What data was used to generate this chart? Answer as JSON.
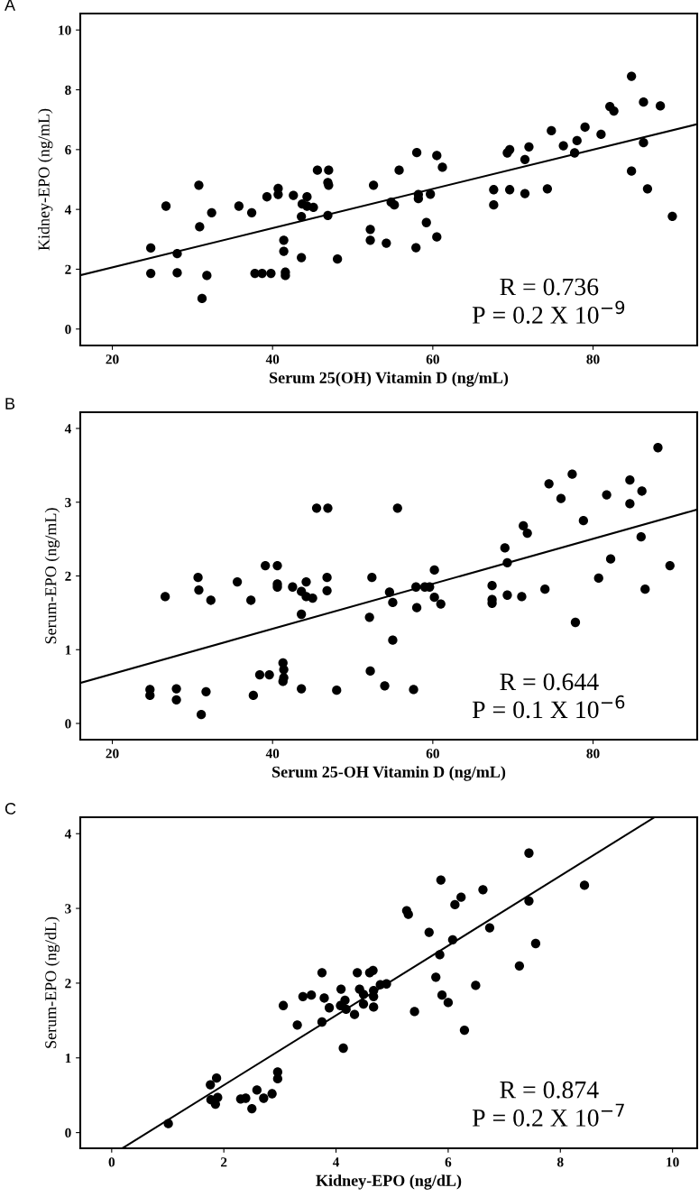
{
  "chart_data": [
    {
      "type": "scatter",
      "title": "A",
      "xlabel": "Serum 25(OH) Vitamin D (ng/mL)",
      "ylabel": "Kidney-EPO (ng/mL)",
      "xlim": [
        16,
        93
      ],
      "ylim": [
        -0.55,
        10.55
      ],
      "xticks": [
        20,
        40,
        60,
        80
      ],
      "yticks": [
        0,
        2,
        4,
        6,
        8,
        10
      ],
      "grid": false,
      "annotations": [
        "R = 0.736",
        "P = 0.2 X 10$^{−9}$"
      ],
      "series": [
        {
          "marker": "circle",
          "color": "#000000",
          "x": [
            24.8,
            24.8,
            26.7,
            28.1,
            28.1,
            30.8,
            30.9,
            31.2,
            31.8,
            32.4,
            35.8,
            37.4,
            37.8,
            38.7,
            39.3,
            39.8,
            40.7,
            40.7,
            41.4,
            41.4,
            41.6,
            41.6,
            42.6,
            43.6,
            43.6,
            43.7,
            44.3,
            44.3,
            45.1,
            45.6,
            47.0,
            46.9,
            47.0,
            46.9,
            48.1,
            52.2,
            52.2,
            52.6,
            54.2,
            54.8,
            55.2,
            55.8,
            57.9,
            58.0,
            58.2,
            58.2,
            59.2,
            59.7,
            60.5,
            60.5,
            61.2,
            67.6,
            67.6,
            69.3,
            69.6,
            69.6,
            71.5,
            71.5,
            72.0,
            74.3,
            74.8,
            76.3,
            77.7,
            78.0,
            79.0,
            81.0,
            82.1,
            82.6,
            84.8,
            84.8,
            86.3,
            86.3,
            86.8,
            88.4,
            89.9
          ],
          "values": [
            2.71,
            1.86,
            4.11,
            2.52,
            1.88,
            4.81,
            3.42,
            1.02,
            1.79,
            3.89,
            4.11,
            3.89,
            1.86,
            1.86,
            4.42,
            1.86,
            4.7,
            4.5,
            2.97,
            2.6,
            1.9,
            1.79,
            4.47,
            3.76,
            2.39,
            4.18,
            4.42,
            4.11,
            4.07,
            5.31,
            5.31,
            4.9,
            4.81,
            3.8,
            2.34,
            3.33,
            2.97,
            4.81,
            2.87,
            4.24,
            4.15,
            5.31,
            2.72,
            5.9,
            4.5,
            4.36,
            3.56,
            4.51,
            5.8,
            3.08,
            5.41,
            4.66,
            4.15,
            5.89,
            6.0,
            4.66,
            5.67,
            4.53,
            6.09,
            4.69,
            6.63,
            6.13,
            5.89,
            6.3,
            6.75,
            6.51,
            7.44,
            7.29,
            8.45,
            5.28,
            7.59,
            6.23,
            4.69,
            7.46,
            3.77
          ]
        },
        {
          "type": "line",
          "marker": "none",
          "color": "#000000",
          "x": [
            16,
            93
          ],
          "values": [
            1.8,
            6.85
          ]
        }
      ]
    },
    {
      "type": "scatter",
      "title": "B",
      "xlabel": "Serum 25-OH Vitamin D (ng/mL)",
      "ylabel": "Serum-EPO (ng/mL)",
      "xlim": [
        16,
        93
      ],
      "ylim": [
        -0.22,
        4.22
      ],
      "xticks": [
        20,
        40,
        60,
        80
      ],
      "yticks": [
        0,
        1,
        2,
        3,
        4
      ],
      "grid": false,
      "annotations": [
        "R = 0.644",
        "P = 0.1 X 10$^{−6}$"
      ],
      "series": [
        {
          "marker": "circle",
          "color": "#000000",
          "x": [
            24.7,
            24.7,
            26.6,
            28.0,
            28.0,
            30.7,
            30.8,
            31.1,
            31.7,
            32.3,
            35.6,
            37.3,
            37.6,
            38.4,
            39.1,
            39.6,
            40.6,
            40.6,
            40.6,
            41.3,
            41.4,
            41.4,
            41.3,
            42.5,
            43.6,
            43.6,
            43.6,
            44.2,
            44.2,
            45.0,
            45.5,
            46.8,
            46.9,
            46.8,
            48.0,
            52.1,
            52.2,
            52.4,
            54.0,
            54.6,
            55.0,
            55.0,
            55.6,
            57.6,
            57.9,
            58.0,
            59.0,
            59.6,
            60.2,
            60.2,
            61.0,
            67.4,
            67.4,
            67.4,
            69.0,
            69.3,
            69.3,
            71.1,
            71.3,
            71.8,
            74.0,
            74.5,
            76.0,
            77.4,
            77.8,
            78.8,
            80.7,
            81.7,
            82.2,
            84.6,
            84.6,
            86.0,
            86.1,
            86.5,
            88.1,
            89.6
          ],
          "values": [
            0.46,
            0.38,
            1.72,
            0.47,
            0.32,
            1.98,
            1.81,
            0.12,
            0.43,
            1.67,
            1.92,
            1.67,
            0.38,
            0.66,
            2.14,
            0.66,
            2.14,
            1.89,
            1.85,
            0.82,
            0.73,
            0.62,
            0.57,
            1.85,
            1.79,
            1.48,
            0.47,
            1.92,
            1.72,
            1.7,
            2.92,
            1.98,
            2.92,
            1.8,
            0.45,
            1.44,
            0.71,
            1.98,
            0.51,
            1.78,
            1.64,
            1.13,
            2.92,
            0.46,
            1.85,
            1.57,
            1.85,
            1.85,
            2.08,
            1.71,
            1.62,
            1.87,
            1.68,
            1.63,
            2.38,
            2.18,
            1.74,
            1.72,
            2.68,
            2.58,
            1.82,
            3.25,
            3.05,
            3.38,
            1.37,
            2.75,
            1.97,
            3.1,
            2.23,
            3.3,
            2.98,
            2.53,
            3.15,
            1.82,
            3.74,
            2.14
          ]
        },
        {
          "type": "line",
          "marker": "none",
          "color": "#000000",
          "x": [
            16,
            93
          ],
          "values": [
            0.55,
            2.9
          ]
        }
      ]
    },
    {
      "type": "scatter",
      "title": "C",
      "xlabel": "Kidney-EPO (ng/dL)",
      "ylabel": "Serum-EPO (ng/dL)",
      "xlim": [
        -0.56,
        10.44
      ],
      "ylim": [
        -0.21,
        4.22
      ],
      "xticks": [
        0,
        2,
        4,
        6,
        8,
        10
      ],
      "yticks": [
        0,
        1,
        2,
        3,
        4
      ],
      "grid": false,
      "annotations": [
        "R = 0.874",
        "P = 0.2 X 10$^{−7}$"
      ],
      "series": [
        {
          "marker": "circle",
          "color": "#000000",
          "x": [
            1.01,
            1.76,
            1.87,
            1.77,
            1.89,
            1.85,
            2.3,
            2.39,
            2.5,
            2.59,
            2.71,
            2.86,
            2.96,
            2.96,
            3.06,
            3.31,
            3.41,
            3.56,
            3.75,
            3.75,
            3.79,
            3.88,
            4.09,
            4.08,
            4.13,
            4.16,
            4.18,
            4.33,
            4.38,
            4.42,
            4.49,
            4.49,
            4.6,
            4.66,
            4.67,
            4.67,
            4.67,
            4.79,
            4.9,
            5.26,
            5.29,
            5.4,
            5.66,
            5.78,
            5.85,
            5.87,
            5.89,
            6.0,
            6.08,
            6.12,
            6.23,
            6.29,
            6.49,
            6.62,
            6.74,
            7.27,
            7.44,
            7.44,
            7.56,
            8.43
          ],
          "values": [
            0.12,
            0.64,
            0.73,
            0.44,
            0.47,
            0.38,
            0.45,
            0.46,
            0.32,
            0.57,
            0.46,
            0.52,
            0.81,
            0.72,
            1.7,
            1.44,
            1.82,
            1.84,
            2.14,
            1.48,
            1.8,
            1.67,
            1.92,
            1.7,
            1.13,
            1.77,
            1.65,
            1.58,
            2.14,
            1.92,
            1.72,
            1.85,
            2.14,
            2.17,
            1.82,
            1.9,
            1.68,
            1.98,
            1.99,
            2.97,
            2.92,
            1.62,
            2.68,
            2.08,
            2.38,
            3.38,
            1.84,
            1.74,
            2.58,
            3.05,
            3.15,
            1.37,
            1.97,
            3.25,
            2.74,
            2.23,
            3.1,
            3.74,
            2.53,
            3.31
          ]
        },
        {
          "type": "line",
          "marker": "none",
          "color": "#000000",
          "x": [
            0.19,
            9.68
          ],
          "values": [
            -0.21,
            4.22
          ]
        }
      ]
    }
  ]
}
